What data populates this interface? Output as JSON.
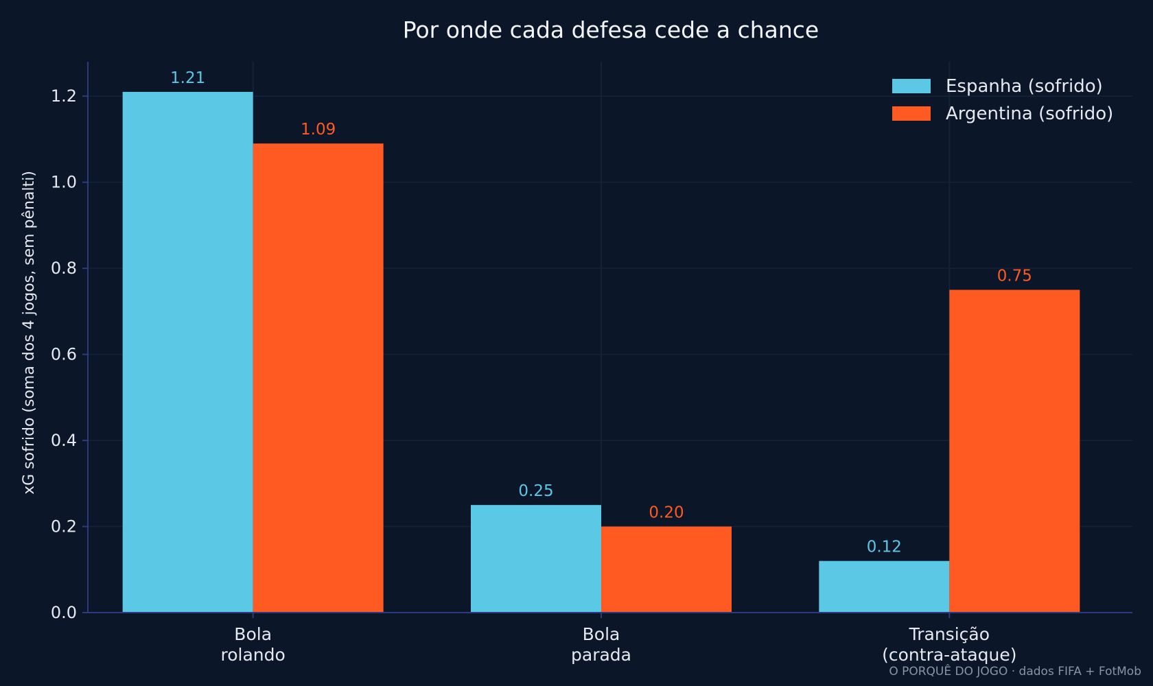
{
  "chart_data": {
    "type": "bar",
    "title": "Por onde cada defesa cede a chance",
    "ylabel": "xG sofrido (soma dos 4 jogos, sem pênalti)",
    "xlabel": "",
    "ylim": [
      0,
      1.28
    ],
    "yticks": [
      "0.0",
      "0.2",
      "0.4",
      "0.6",
      "0.8",
      "1.0",
      "1.2"
    ],
    "categories": [
      [
        "Bola",
        "rolando"
      ],
      [
        "Bola",
        "parada"
      ],
      [
        "Transição",
        "(contra-ataque)"
      ]
    ],
    "series": [
      {
        "name": "Espanha (sofrido)",
        "color": "#5bc8e6",
        "values": [
          1.21,
          0.25,
          0.12
        ],
        "labels": [
          "1.21",
          "0.25",
          "0.12"
        ]
      },
      {
        "name": "Argentina (sofrido)",
        "color": "#ff5a22",
        "values": [
          1.09,
          0.2,
          0.75
        ],
        "labels": [
          "1.09",
          "0.20",
          "0.75"
        ]
      }
    ],
    "grid": true,
    "legend": "top-right"
  },
  "footer": "O PORQUÊ DO JOGO · dados FIFA + FotMob",
  "colors": {
    "background": "#0b1628",
    "axis": "#2e3a80",
    "grid": "#16223a"
  }
}
